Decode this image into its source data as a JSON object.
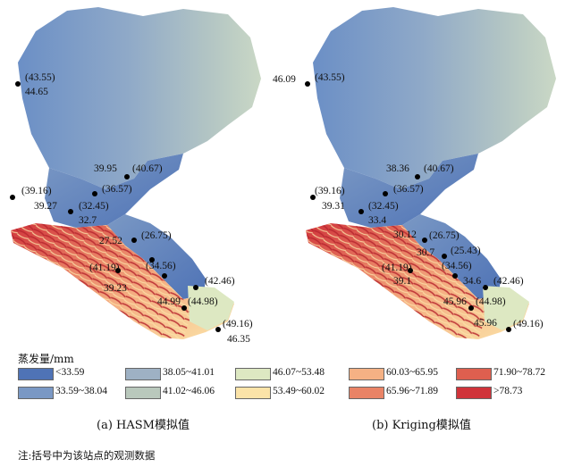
{
  "legend": {
    "title": "蒸发量/mm",
    "items": [
      {
        "label": "<33.59",
        "color": "#4f73b6"
      },
      {
        "label": "33.59~38.04",
        "color": "#7a98c4"
      },
      {
        "label": "38.05~41.01",
        "color": "#9eb1c4"
      },
      {
        "label": "41.02~46.06",
        "color": "#b9c8bc"
      },
      {
        "label": "46.07~53.48",
        "color": "#dde8c2"
      },
      {
        "label": "53.49~60.02",
        "color": "#fbe3a8"
      },
      {
        "label": "60.03~65.95",
        "color": "#f5b184"
      },
      {
        "label": "65.96~71.89",
        "color": "#e98366"
      },
      {
        "label": "71.90~78.72",
        "color": "#de5f4f"
      },
      {
        "label": ">78.73",
        "color": "#d0333a"
      }
    ]
  },
  "panels": [
    {
      "caption": "(a) HASM模拟值",
      "stations": [
        {
          "observed": "(43.55)",
          "simulated": "44.65"
        },
        {
          "observed": "(40.67)",
          "simulated": "39.95"
        },
        {
          "observed": "(36.57)",
          "simulated": ""
        },
        {
          "observed": "(39.16)",
          "simulated": "39.27"
        },
        {
          "observed": "(32.45)",
          "simulated": "32.7"
        },
        {
          "observed": "(26.75)",
          "simulated": "27.52"
        },
        {
          "observed": "(41.19)",
          "simulated": "39.23"
        },
        {
          "observed": "(34.56)",
          "simulated": ""
        },
        {
          "observed": "(42.46)",
          "simulated": ""
        },
        {
          "observed": "(44.98)",
          "simulated": "44.99"
        },
        {
          "observed": "(49.16)",
          "simulated": "46.35"
        }
      ]
    },
    {
      "caption": "(b) Kriging模拟值",
      "stations": [
        {
          "observed": "(43.55)",
          "simulated": "46.09"
        },
        {
          "observed": "(40.67)",
          "simulated": "38.36"
        },
        {
          "observed": "(36.57)",
          "simulated": ""
        },
        {
          "observed": "(39.16)",
          "simulated": "39.31"
        },
        {
          "observed": "(32.45)",
          "simulated": "33.4"
        },
        {
          "observed": "(26.75)",
          "simulated": "30.12"
        },
        {
          "observed": "(25.43)",
          "simulated": "30.7"
        },
        {
          "observed": "(34.56)",
          "simulated": "34.6"
        },
        {
          "observed": "(41.19)",
          "simulated": "39.1"
        },
        {
          "observed": "(42.46)",
          "simulated": ""
        },
        {
          "observed": "(44.98)",
          "simulated": "45.96"
        },
        {
          "observed": "(49.16)",
          "simulated": "45.96"
        }
      ]
    }
  ],
  "note": "注:括号中为该站点的观测数据"
}
